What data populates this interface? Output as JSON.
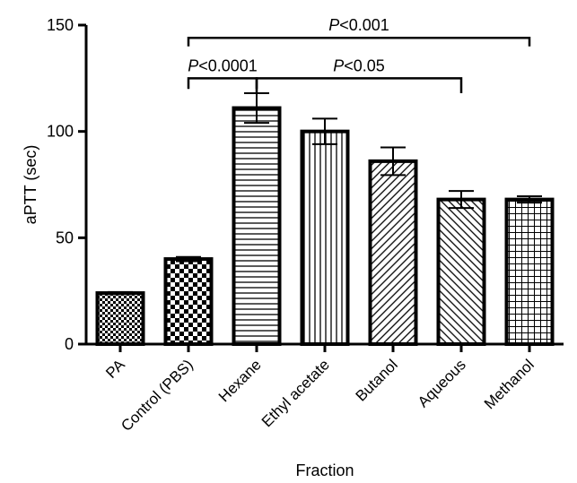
{
  "chart_data": {
    "type": "bar",
    "xlabel": "Fraction",
    "ylabel": "aPTT (sec)",
    "ylim": [
      0,
      150
    ],
    "yticks": [
      0,
      50,
      100,
      150
    ],
    "categories": [
      "PA",
      "Control (PBS)",
      "Hexane",
      "Ethyl acetate",
      "Butanol",
      "Aqueous",
      "Methanol"
    ],
    "values": [
      24,
      40,
      111,
      100,
      86,
      68,
      68
    ],
    "errors": [
      0.5,
      1,
      7,
      6,
      6.5,
      4,
      1.5
    ],
    "patterns": [
      "fine-check",
      "checker",
      "horizontal",
      "vertical",
      "diag-up",
      "diag-down",
      "grid"
    ],
    "annotations": [
      {
        "label": "P",
        "text": "<0.0001",
        "from": 1,
        "to": 2,
        "y": 125,
        "tick_len": 5
      },
      {
        "label": "P",
        "text": "<0.05",
        "from": 2,
        "to": 5,
        "y": 125,
        "tick_len": 7
      },
      {
        "label": "P",
        "text": "<0.001",
        "from": 1,
        "to": 6,
        "y": 144,
        "tick_len": 4
      }
    ]
  }
}
